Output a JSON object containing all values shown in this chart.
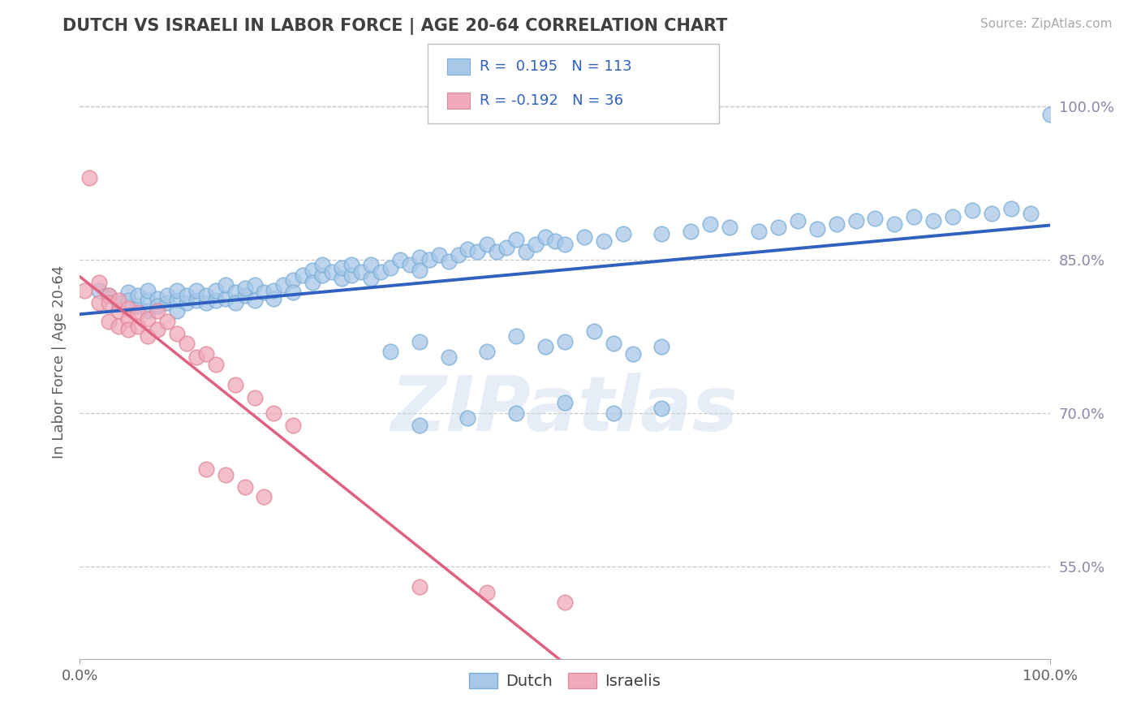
{
  "title": "DUTCH VS ISRAELI IN LABOR FORCE | AGE 20-64 CORRELATION CHART",
  "source": "Source: ZipAtlas.com",
  "ylabel": "In Labor Force | Age 20-64",
  "xlim": [
    0.0,
    1.0
  ],
  "ylim": [
    0.46,
    1.04
  ],
  "yticks": [
    0.55,
    0.7,
    0.85,
    1.0
  ],
  "ytick_labels": [
    "55.0%",
    "70.0%",
    "85.0%",
    "100.0%"
  ],
  "dutch_color": "#a8c8e8",
  "dutch_edge_color": "#7aaed8",
  "israeli_color": "#f0aabb",
  "israeli_edge_color": "#e08898",
  "dutch_line_color": "#3060c0",
  "israeli_line_color": "#e06080",
  "watermark": "ZIPatlas",
  "background_color": "#ffffff",
  "grid_color": "#c8c8c8",
  "title_color": "#404040",
  "axis_label_color": "#606060",
  "tick_color": "#8888aa",
  "dutch_x": [
    0.02,
    0.03,
    0.04,
    0.05,
    0.05,
    0.06,
    0.06,
    0.07,
    0.07,
    0.07,
    0.08,
    0.08,
    0.09,
    0.09,
    0.1,
    0.1,
    0.1,
    0.11,
    0.11,
    0.12,
    0.12,
    0.13,
    0.13,
    0.14,
    0.14,
    0.15,
    0.15,
    0.16,
    0.16,
    0.17,
    0.17,
    0.18,
    0.18,
    0.19,
    0.2,
    0.2,
    0.21,
    0.22,
    0.22,
    0.23,
    0.24,
    0.24,
    0.25,
    0.25,
    0.26,
    0.27,
    0.27,
    0.28,
    0.28,
    0.29,
    0.3,
    0.3,
    0.31,
    0.32,
    0.33,
    0.34,
    0.35,
    0.35,
    0.36,
    0.37,
    0.38,
    0.39,
    0.4,
    0.41,
    0.42,
    0.43,
    0.44,
    0.45,
    0.46,
    0.47,
    0.48,
    0.49,
    0.5,
    0.52,
    0.54,
    0.56,
    0.6,
    0.63,
    0.65,
    0.67,
    0.7,
    0.72,
    0.74,
    0.76,
    0.78,
    0.8,
    0.82,
    0.84,
    0.86,
    0.88,
    0.9,
    0.92,
    0.94,
    0.96,
    0.98,
    1.0,
    0.32,
    0.35,
    0.38,
    0.42,
    0.45,
    0.48,
    0.5,
    0.53,
    0.55,
    0.57,
    0.6,
    0.35,
    0.4,
    0.45,
    0.5,
    0.55,
    0.6
  ],
  "dutch_y": [
    0.82,
    0.815,
    0.808,
    0.818,
    0.81,
    0.805,
    0.815,
    0.8,
    0.81,
    0.82,
    0.812,
    0.805,
    0.808,
    0.815,
    0.81,
    0.8,
    0.82,
    0.808,
    0.815,
    0.81,
    0.82,
    0.808,
    0.815,
    0.81,
    0.82,
    0.812,
    0.825,
    0.818,
    0.808,
    0.815,
    0.822,
    0.81,
    0.825,
    0.818,
    0.812,
    0.82,
    0.825,
    0.83,
    0.818,
    0.835,
    0.84,
    0.828,
    0.835,
    0.845,
    0.838,
    0.832,
    0.842,
    0.835,
    0.845,
    0.838,
    0.832,
    0.845,
    0.838,
    0.842,
    0.85,
    0.845,
    0.852,
    0.84,
    0.85,
    0.855,
    0.848,
    0.855,
    0.86,
    0.858,
    0.865,
    0.858,
    0.862,
    0.87,
    0.858,
    0.865,
    0.872,
    0.868,
    0.865,
    0.872,
    0.868,
    0.875,
    0.875,
    0.878,
    0.885,
    0.882,
    0.878,
    0.882,
    0.888,
    0.88,
    0.885,
    0.888,
    0.89,
    0.885,
    0.892,
    0.888,
    0.892,
    0.898,
    0.895,
    0.9,
    0.895,
    0.992,
    0.76,
    0.77,
    0.755,
    0.76,
    0.775,
    0.765,
    0.77,
    0.78,
    0.768,
    0.758,
    0.765,
    0.688,
    0.695,
    0.7,
    0.71,
    0.7,
    0.705
  ],
  "israeli_x": [
    0.005,
    0.01,
    0.02,
    0.02,
    0.03,
    0.03,
    0.03,
    0.04,
    0.04,
    0.04,
    0.05,
    0.05,
    0.05,
    0.06,
    0.06,
    0.07,
    0.07,
    0.08,
    0.08,
    0.09,
    0.1,
    0.11,
    0.12,
    0.13,
    0.14,
    0.16,
    0.18,
    0.2,
    0.22,
    0.13,
    0.15,
    0.17,
    0.19,
    0.35,
    0.42,
    0.5
  ],
  "israeli_y": [
    0.82,
    0.93,
    0.828,
    0.808,
    0.815,
    0.79,
    0.808,
    0.8,
    0.81,
    0.785,
    0.802,
    0.792,
    0.782,
    0.798,
    0.785,
    0.792,
    0.775,
    0.8,
    0.782,
    0.79,
    0.778,
    0.768,
    0.755,
    0.758,
    0.748,
    0.728,
    0.715,
    0.7,
    0.688,
    0.645,
    0.64,
    0.628,
    0.618,
    0.53,
    0.525,
    0.515
  ]
}
